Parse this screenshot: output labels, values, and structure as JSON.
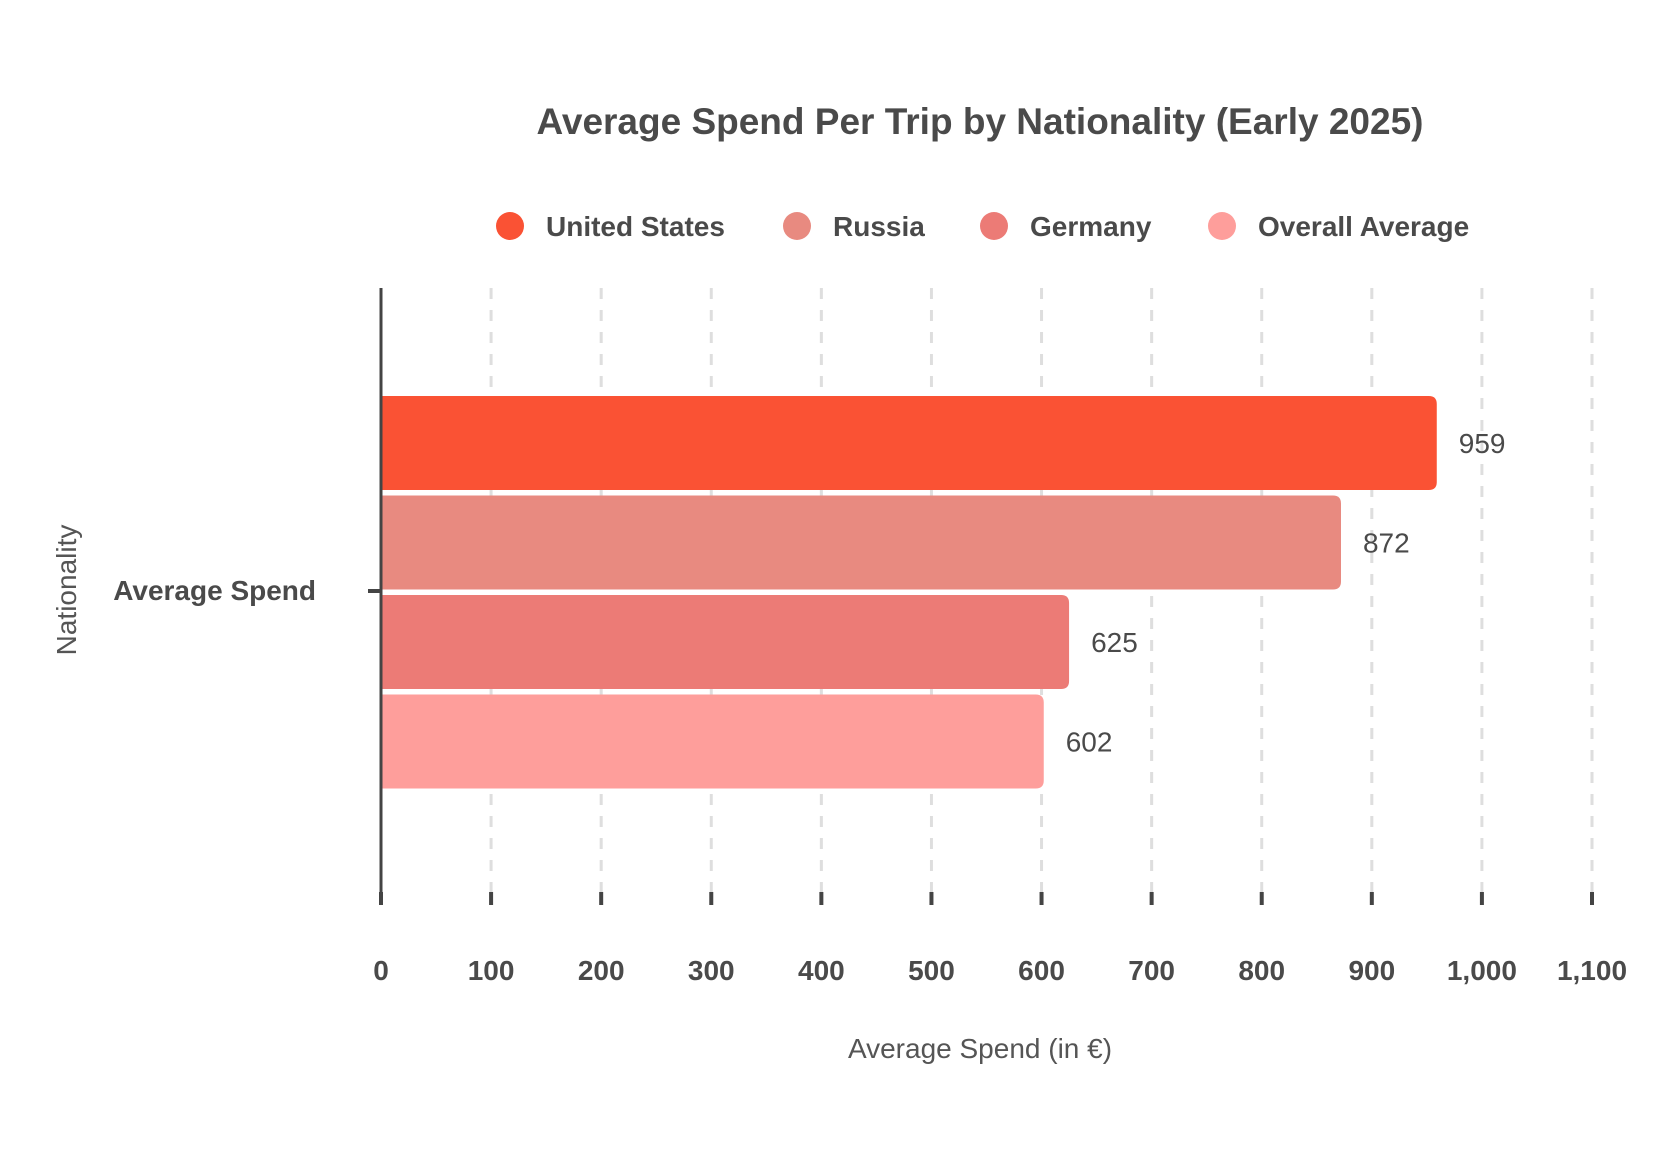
{
  "chart_data": {
    "type": "bar",
    "orientation": "horizontal",
    "title": "Average Spend Per Trip by Nationality (Early 2025)",
    "xlabel": "Average Spend (in €)",
    "ylabel": "Nationality",
    "categories": [
      "Average Spend"
    ],
    "xlim": [
      0,
      1100
    ],
    "xticks": [
      0,
      100,
      200,
      300,
      400,
      500,
      600,
      700,
      800,
      900,
      1000,
      1100
    ],
    "xtick_labels": [
      "0",
      "100",
      "200",
      "300",
      "400",
      "500",
      "600",
      "700",
      "800",
      "900",
      "1,000",
      "1,100"
    ],
    "grid": true,
    "legend_position": "top",
    "series": [
      {
        "name": "United States",
        "values": [
          959
        ],
        "label": "959",
        "color": "#fa5234"
      },
      {
        "name": "Russia",
        "values": [
          872
        ],
        "label": "872",
        "color": "#e88a80"
      },
      {
        "name": "Germany",
        "values": [
          625
        ],
        "label": "625",
        "color": "#ec7b76"
      },
      {
        "name": "Overall Average",
        "values": [
          602
        ],
        "label": "602",
        "color": "#fe9e9b"
      }
    ]
  }
}
